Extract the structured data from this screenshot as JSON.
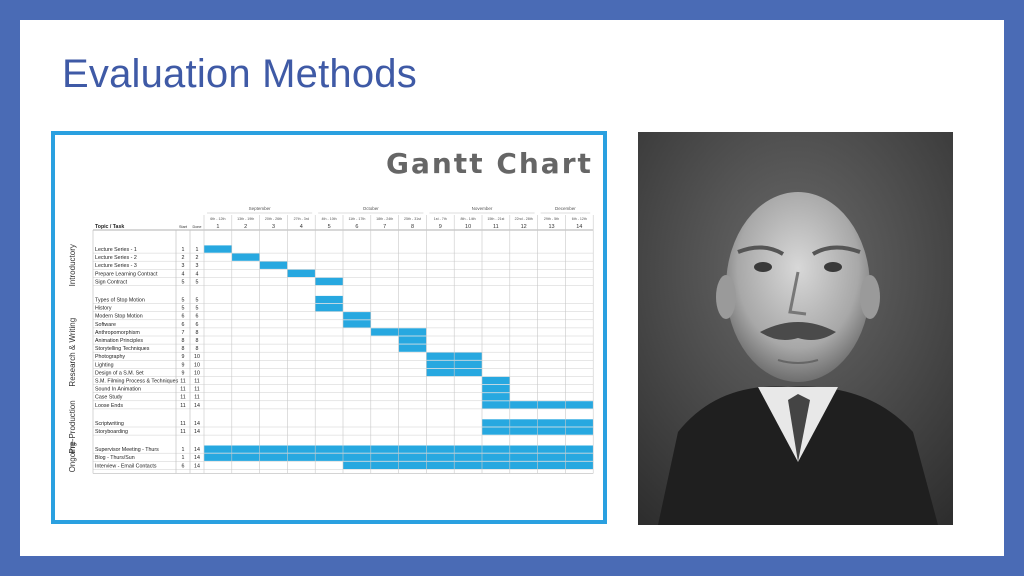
{
  "slide": {
    "title": "Evaluation Methods"
  },
  "gantt": {
    "heading": "Gantt Chart",
    "header": {
      "topic": "Topic / Task",
      "start": "Start",
      "done": "Done"
    },
    "months": [
      {
        "label": "September",
        "from": 1,
        "to": 4
      },
      {
        "label": "October",
        "from": 5,
        "to": 8
      },
      {
        "label": "November",
        "from": 9,
        "to": 12
      },
      {
        "label": "December",
        "from": 13,
        "to": 14
      }
    ],
    "weeks": [
      "6th - 12th",
      "13th - 19th",
      "20th - 26th",
      "27th - 3rd",
      "4th - 10th",
      "11th - 17th",
      "18th - 24th",
      "25th - 31st",
      "1st - 7th",
      "8th - 14th",
      "15th - 21st",
      "22nd - 28th",
      "29th - 5th",
      "6th - 12th"
    ],
    "week_numbers": [
      "1",
      "2",
      "3",
      "4",
      "5",
      "6",
      "7",
      "8",
      "9",
      "10",
      "11",
      "12",
      "13",
      "14"
    ],
    "groups": [
      {
        "label": "Introductory",
        "tasks": [
          {
            "name": "Lecture Series - 1",
            "start": "1",
            "done": "1"
          },
          {
            "name": "Lecture Series - 2",
            "start": "2",
            "done": "2"
          },
          {
            "name": "Lecture Series - 3",
            "start": "3",
            "done": "3"
          },
          {
            "name": "Prepare Learning Contract",
            "start": "4",
            "done": "4"
          },
          {
            "name": "Sign Contract",
            "start": "5",
            "done": "5"
          }
        ]
      },
      {
        "label": "Research & Writing",
        "tasks": [
          {
            "name": "Types of Stop Motion",
            "start": "5",
            "done": "5"
          },
          {
            "name": "History",
            "start": "5",
            "done": "5"
          },
          {
            "name": "Modern Stop Motion",
            "start": "6",
            "done": "6"
          },
          {
            "name": "Software",
            "start": "6",
            "done": "6"
          },
          {
            "name": "Anthropomorphism",
            "start": "7",
            "done": "8"
          },
          {
            "name": "Animation Principles",
            "start": "8",
            "done": "8"
          },
          {
            "name": "Storytelling Techniques",
            "start": "8",
            "done": "8"
          },
          {
            "name": "Photography",
            "start": "9",
            "done": "10"
          },
          {
            "name": "Lighting",
            "start": "9",
            "done": "10"
          },
          {
            "name": "Design of a S.M. Set",
            "start": "9",
            "done": "10"
          },
          {
            "name": "S.M. Filming Process & Techniques",
            "start": "11",
            "done": "11"
          },
          {
            "name": "Sound In Animation",
            "start": "11",
            "done": "11"
          },
          {
            "name": "Case Study",
            "start": "11",
            "done": "11"
          },
          {
            "name": "Loose Ends",
            "start": "11",
            "done": "14"
          }
        ]
      },
      {
        "label": "Pre-Production",
        "tasks": [
          {
            "name": "Scriptwriting",
            "start": "11",
            "done": "14"
          },
          {
            "name": "Storyboarding",
            "start": "11",
            "done": "14"
          }
        ]
      },
      {
        "label": "Ongoing",
        "tasks": [
          {
            "name": "Supervisor Meeting - Thurs",
            "start": "1",
            "done": "14"
          },
          {
            "name": "Blog - Thurs/Sun",
            "start": "1",
            "done": "14"
          },
          {
            "name": "Interview - Email Contacts",
            "start": "6",
            "done": "14"
          }
        ]
      }
    ],
    "bar_color": "#27a8e0"
  },
  "photo": {
    "subject": "portrait-photo"
  }
}
